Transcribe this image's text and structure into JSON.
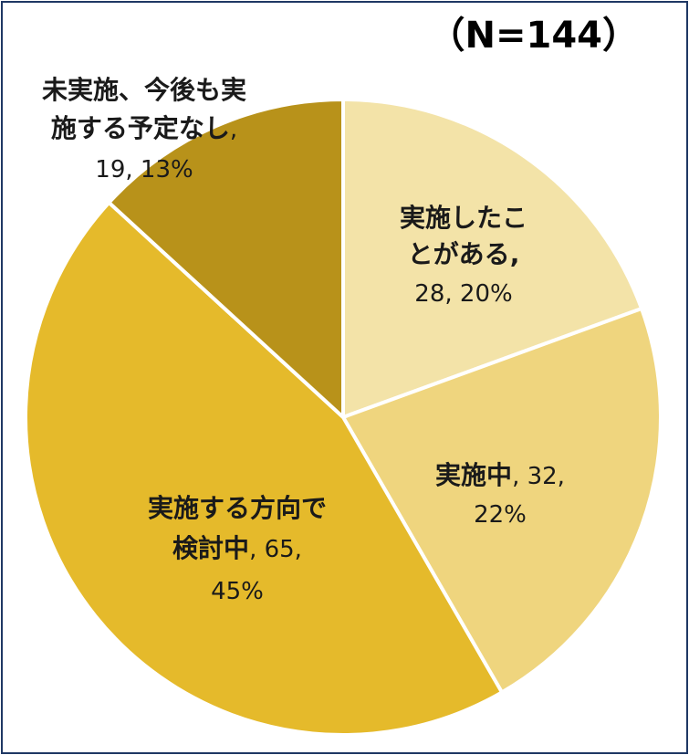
{
  "chart_data": {
    "type": "pie",
    "title": "",
    "note": "（N=144）",
    "slices": [
      {
        "name": "実施したことがある",
        "name_lines": [
          "実施したこ",
          "とがある"
        ],
        "count": 28,
        "percent_label": "20%",
        "value_text": "28, 20%",
        "color": "#f3e3a8"
      },
      {
        "name": "実施中",
        "name_lines": [
          "実施中"
        ],
        "count": 32,
        "percent_label": "22%",
        "value_text": ", 32,",
        "value_text2": "22%",
        "color": "#efd57e"
      },
      {
        "name": "実施する方向で検討中",
        "name_lines": [
          "実施する方向で",
          "検討中"
        ],
        "count": 65,
        "percent_label": "45%",
        "value_text": ", 65,",
        "value_text2": "45%",
        "color": "#e5ba2b"
      },
      {
        "name": "未実施、今後も実施する予定なし",
        "name_lines": [
          "未実施、今後も実",
          "施する予定なし"
        ],
        "count": 19,
        "percent_label": "13%",
        "value_text": ",",
        "value_text2": "19, 13%",
        "color": "#b8921a"
      }
    ],
    "legend": "none"
  }
}
